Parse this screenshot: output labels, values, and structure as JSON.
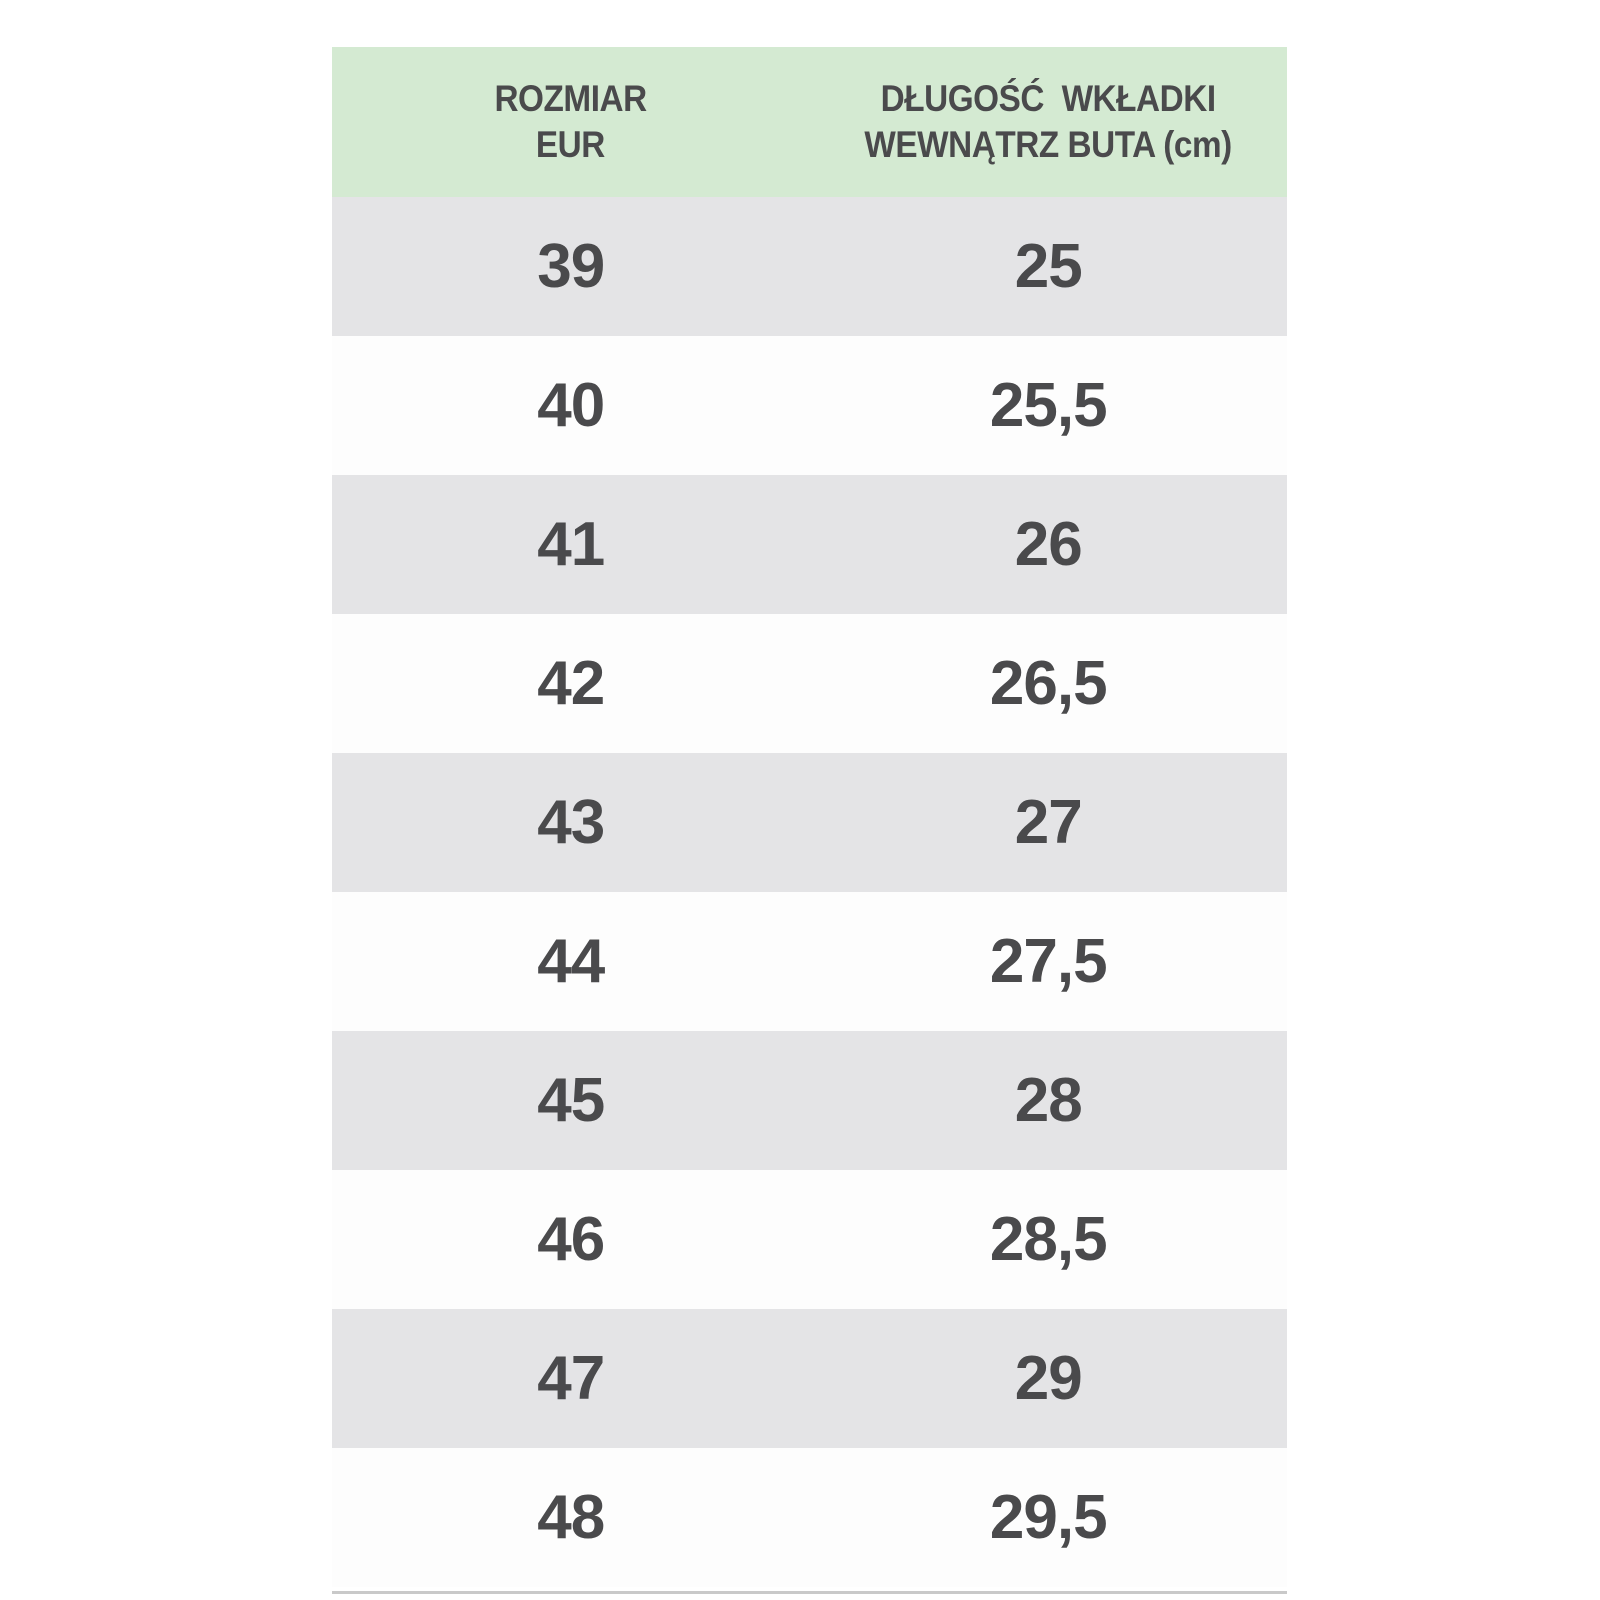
{
  "chart_data": {
    "type": "table",
    "columns": [
      "ROZMIAR EUR",
      "DŁUGOŚĆ WKŁADKI WEWNĄTRZ BUTA (cm)"
    ],
    "rows": [
      [
        "39",
        "25"
      ],
      [
        "40",
        "25,5"
      ],
      [
        "41",
        "26"
      ],
      [
        "42",
        "26,5"
      ],
      [
        "43",
        "27"
      ],
      [
        "44",
        "27,5"
      ],
      [
        "45",
        "28"
      ],
      [
        "46",
        "28,5"
      ],
      [
        "47",
        "29"
      ],
      [
        "48",
        "29,5"
      ]
    ]
  },
  "table": {
    "header": {
      "col1_line1": "ROZMIAR",
      "col1_line2": "EUR",
      "col2_line1": "DŁUGOŚĆ  WKŁADKI",
      "col2_line2": "WEWNĄTRZ BUTA (cm)"
    },
    "colors": {
      "header_bg": "#d4ead2",
      "row_bg": "#fdfdfd",
      "row_alt_bg": "#e4e4e6",
      "text": "#4a4a4c",
      "bottom_line": "#c9c9c9"
    }
  }
}
